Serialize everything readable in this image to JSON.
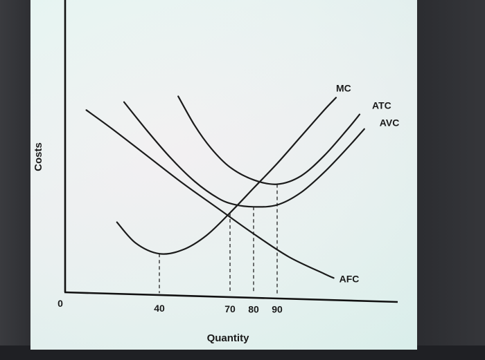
{
  "chart_data": {
    "type": "line",
    "title": "",
    "xlabel": "Quantity",
    "ylabel": "Costs",
    "origin_label": "0",
    "xlim": [
      0,
      140
    ],
    "ylim": [
      0,
      100
    ],
    "x_ticks": [
      {
        "value": 40,
        "label": "40"
      },
      {
        "value": 70,
        "label": "70"
      },
      {
        "value": 80,
        "label": "80"
      },
      {
        "value": 90,
        "label": "90"
      }
    ],
    "series": [
      {
        "name": "MC",
        "points": [
          [
            22,
            34
          ],
          [
            30,
            24
          ],
          [
            40,
            19
          ],
          [
            50,
            21
          ],
          [
            60,
            28
          ],
          [
            70,
            39
          ],
          [
            80,
            51
          ],
          [
            90,
            63
          ],
          [
            100,
            76
          ],
          [
            110,
            89
          ],
          [
            115,
            95
          ]
        ]
      },
      {
        "name": "ATC",
        "points": [
          [
            48,
            95
          ],
          [
            55,
            81
          ],
          [
            62,
            70
          ],
          [
            70,
            61
          ],
          [
            80,
            55
          ],
          [
            90,
            53
          ],
          [
            100,
            57
          ],
          [
            110,
            67
          ],
          [
            120,
            80
          ],
          [
            125,
            87
          ]
        ]
      },
      {
        "name": "AVC",
        "points": [
          [
            25,
            92
          ],
          [
            35,
            78
          ],
          [
            45,
            65
          ],
          [
            55,
            54
          ],
          [
            65,
            46
          ],
          [
            72,
            43
          ],
          [
            80,
            42
          ],
          [
            90,
            43
          ],
          [
            100,
            49
          ],
          [
            110,
            59
          ],
          [
            120,
            71
          ],
          [
            127,
            80
          ]
        ]
      },
      {
        "name": "AFC",
        "points": [
          [
            9,
            88
          ],
          [
            20,
            79
          ],
          [
            35,
            66
          ],
          [
            50,
            53
          ],
          [
            65,
            41
          ],
          [
            80,
            29
          ],
          [
            95,
            18
          ],
          [
            110,
            10
          ],
          [
            114,
            8
          ]
        ]
      }
    ],
    "guide_lines": [
      {
        "x": 40,
        "y": 19
      },
      {
        "x": 70,
        "y": 39
      },
      {
        "x": 80,
        "y": 42
      },
      {
        "x": 90,
        "y": 53
      }
    ],
    "grid": false,
    "legend": "curve-end labels"
  }
}
